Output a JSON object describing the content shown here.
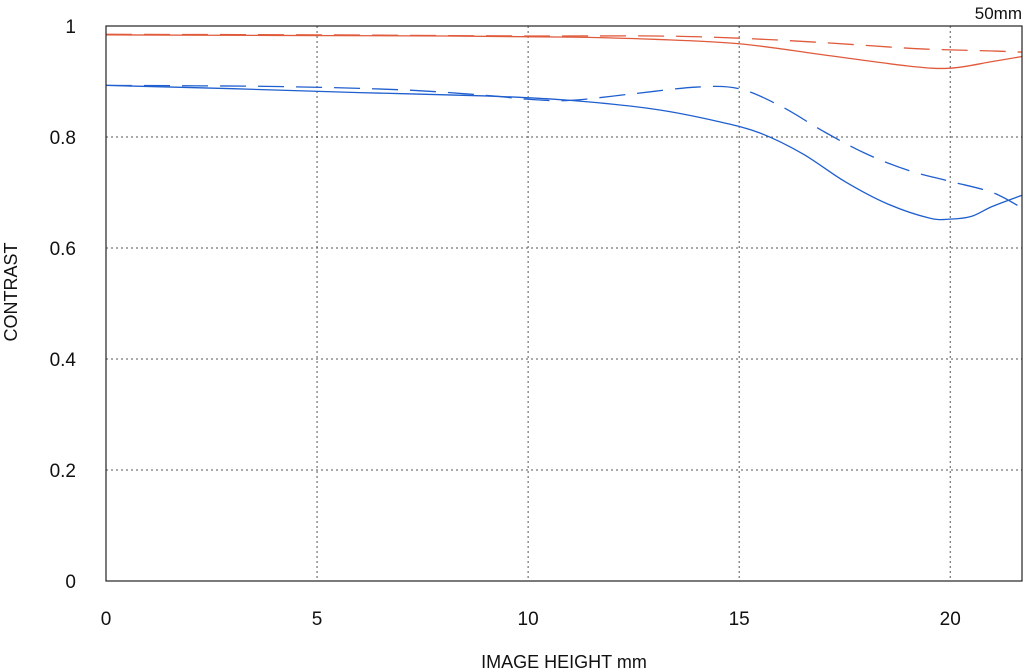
{
  "chart_data": {
    "type": "line",
    "title": "50mm",
    "xlabel": "IMAGE HEIGHT  mm",
    "ylabel": "CONTRAST",
    "xlim": [
      0,
      21.7
    ],
    "ylim": [
      0,
      1
    ],
    "x_ticks": [
      "0",
      "5",
      "10",
      "15",
      "20"
    ],
    "y_ticks": [
      "0",
      "0.2",
      "0.4",
      "0.6",
      "0.8",
      "1"
    ],
    "grid": true,
    "series": [
      {
        "color": "#e05a3c",
        "dash": "solid",
        "points": [
          [
            0,
            0.984
          ],
          [
            4,
            0.983
          ],
          [
            8,
            0.982
          ],
          [
            11,
            0.98
          ],
          [
            13,
            0.976
          ],
          [
            15,
            0.968
          ],
          [
            17,
            0.948
          ],
          [
            19,
            0.928
          ],
          [
            20,
            0.924
          ],
          [
            21,
            0.936
          ],
          [
            21.7,
            0.945
          ]
        ]
      },
      {
        "color": "#e05a3c",
        "dash": "dashed",
        "points": [
          [
            0,
            0.985
          ],
          [
            5,
            0.984
          ],
          [
            10,
            0.982
          ],
          [
            13,
            0.982
          ],
          [
            15,
            0.978
          ],
          [
            17,
            0.97
          ],
          [
            19,
            0.96
          ],
          [
            20,
            0.957
          ],
          [
            21,
            0.955
          ],
          [
            21.7,
            0.953
          ]
        ]
      },
      {
        "color": "#1f5fcf",
        "dash": "solid",
        "points": [
          [
            0,
            0.893
          ],
          [
            3,
            0.887
          ],
          [
            6,
            0.88
          ],
          [
            9,
            0.874
          ],
          [
            11,
            0.866
          ],
          [
            13,
            0.85
          ],
          [
            14.5,
            0.828
          ],
          [
            15.5,
            0.807
          ],
          [
            16.5,
            0.77
          ],
          [
            17.5,
            0.72
          ],
          [
            18.5,
            0.68
          ],
          [
            19.5,
            0.654
          ],
          [
            20,
            0.652
          ],
          [
            20.5,
            0.657
          ],
          [
            21,
            0.675
          ],
          [
            21.7,
            0.695
          ]
        ]
      },
      {
        "color": "#1f5fcf",
        "dash": "dashed",
        "points": [
          [
            0,
            0.893
          ],
          [
            4,
            0.891
          ],
          [
            7,
            0.885
          ],
          [
            9,
            0.875
          ],
          [
            10,
            0.868
          ],
          [
            11,
            0.866
          ],
          [
            12.5,
            0.878
          ],
          [
            14,
            0.89
          ],
          [
            15,
            0.887
          ],
          [
            16,
            0.855
          ],
          [
            17,
            0.81
          ],
          [
            18,
            0.77
          ],
          [
            19,
            0.74
          ],
          [
            20,
            0.72
          ],
          [
            21,
            0.7
          ],
          [
            21.7,
            0.672
          ]
        ]
      }
    ]
  }
}
